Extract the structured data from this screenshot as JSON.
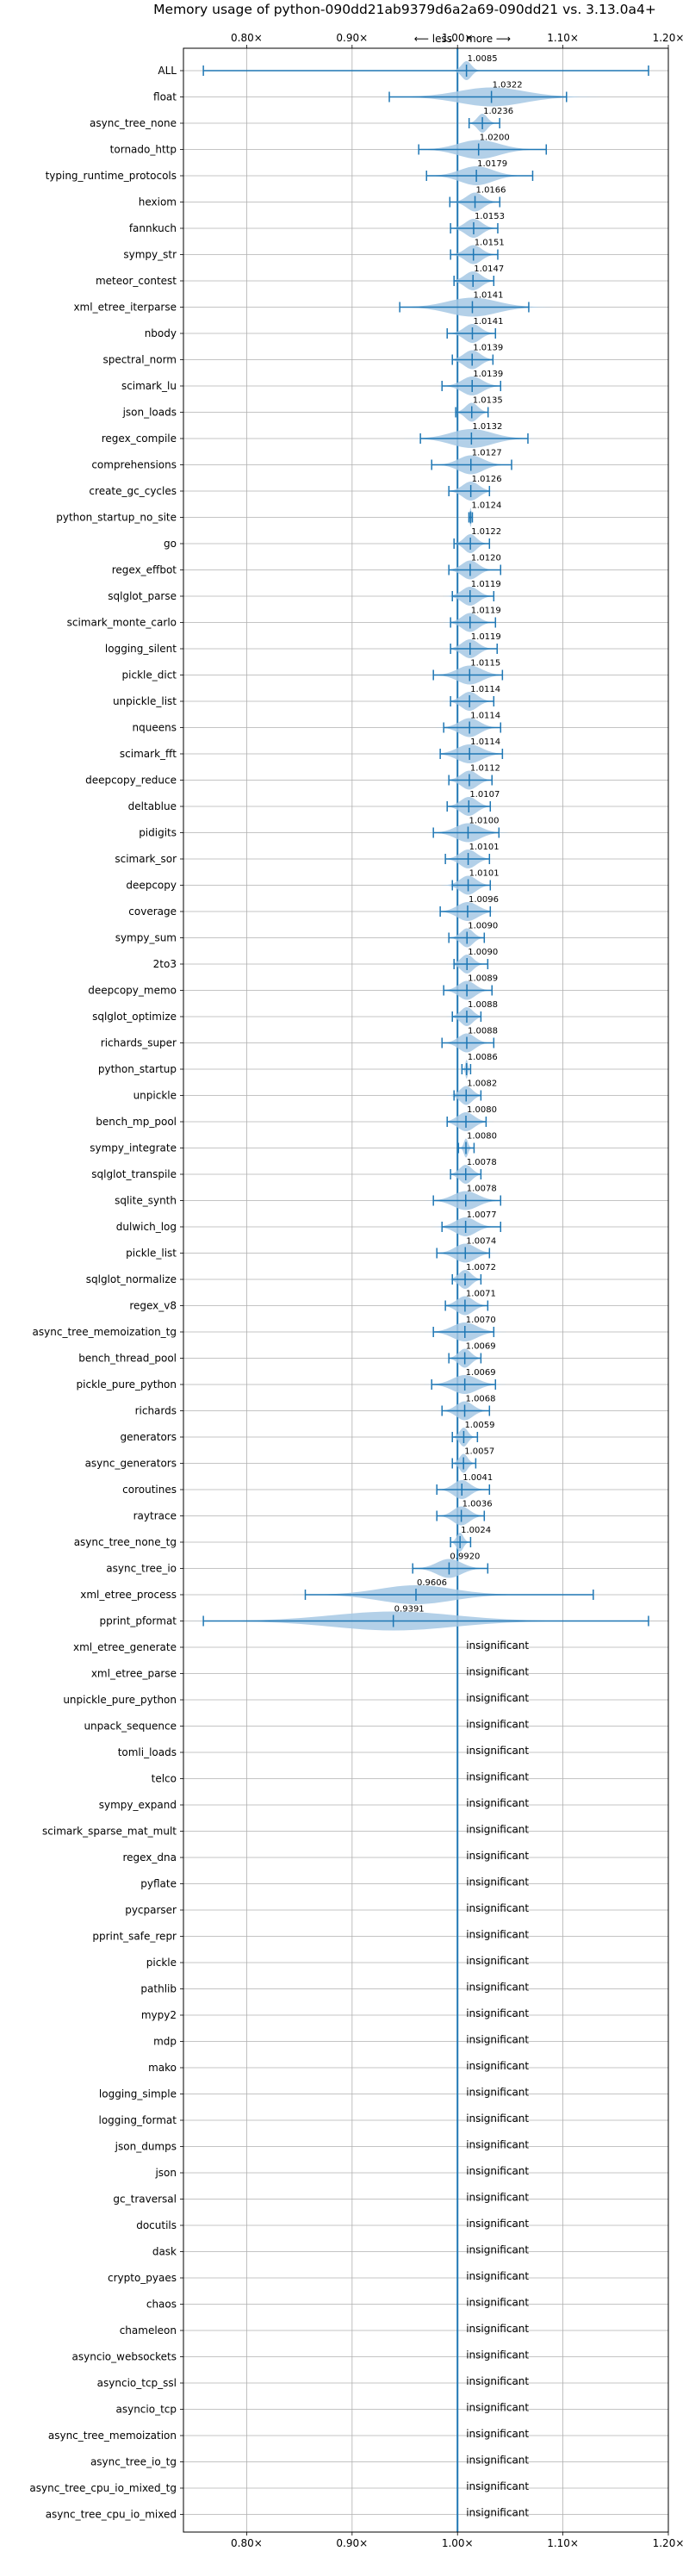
{
  "chart_data": {
    "type": "violin",
    "title": "Memory usage of python-090dd21ab9379d6a2a69-090dd21 vs. 3.13.0a4+",
    "direction_less": "⟵ less",
    "direction_more": "more ⟶",
    "xlim": [
      0.74,
      1.2
    ],
    "xticks": [
      0.8,
      0.9,
      1.0,
      1.1,
      1.2
    ],
    "xtick_labels": [
      "0.80×",
      "0.90×",
      "1.00×",
      "1.10×",
      "1.20×"
    ],
    "grid": true,
    "accent_color": "#1f77b4",
    "violin_fill_color": "#a6c8e4",
    "insignificant_label": "insignificant",
    "benchmarks": [
      {
        "name": "ALL",
        "value": 1.0085,
        "label": "1.0085",
        "lo": 0.7589,
        "hi": 1.1812,
        "spread": 0.012
      },
      {
        "name": "float",
        "value": 1.0322,
        "label": "1.0322",
        "lo": 0.9353,
        "hi": 1.1034,
        "spread": 0.08
      },
      {
        "name": "async_tree_none",
        "value": 1.0236,
        "label": "1.0236",
        "lo": 1.011,
        "hi": 1.04,
        "spread": 0.012
      },
      {
        "name": "tornado_http",
        "value": 1.02,
        "label": "1.0200",
        "lo": 0.9632,
        "hi": 1.0842,
        "spread": 0.05
      },
      {
        "name": "typing_runtime_protocols",
        "value": 1.0179,
        "label": "1.0179",
        "lo": 0.9706,
        "hi": 1.0713,
        "spread": 0.04
      },
      {
        "name": "hexiom",
        "value": 1.0166,
        "label": "1.0166",
        "lo": 0.9927,
        "hi": 1.0401,
        "spread": 0.02
      },
      {
        "name": "fannkuch",
        "value": 1.0153,
        "label": "1.0153",
        "lo": 0.9934,
        "hi": 1.0382,
        "spread": 0.02
      },
      {
        "name": "sympy_str",
        "value": 1.0151,
        "label": "1.0151",
        "lo": 0.9934,
        "hi": 1.0382,
        "spread": 0.02
      },
      {
        "name": "meteor_contest",
        "value": 1.0147,
        "label": "1.0147",
        "lo": 0.9967,
        "hi": 1.0344,
        "spread": 0.02
      },
      {
        "name": "xml_etree_iterparse",
        "value": 1.0141,
        "label": "1.0141",
        "lo": 0.9452,
        "hi": 1.0676,
        "spread": 0.06
      },
      {
        "name": "nbody",
        "value": 1.0141,
        "label": "1.0141",
        "lo": 0.9902,
        "hi": 1.036,
        "spread": 0.02
      },
      {
        "name": "spectral_norm",
        "value": 1.0139,
        "label": "1.0139",
        "lo": 0.9951,
        "hi": 1.0336,
        "spread": 0.02
      },
      {
        "name": "scimark_lu",
        "value": 1.0139,
        "label": "1.0139",
        "lo": 0.9853,
        "hi": 1.0409,
        "spread": 0.025
      },
      {
        "name": "json_loads",
        "value": 1.0135,
        "label": "1.0135",
        "lo": 0.9983,
        "hi": 1.029,
        "spread": 0.015
      },
      {
        "name": "regex_compile",
        "value": 1.0132,
        "label": "1.0132",
        "lo": 0.9648,
        "hi": 1.0668,
        "spread": 0.05
      },
      {
        "name": "comprehensions",
        "value": 1.0127,
        "label": "1.0127",
        "lo": 0.9755,
        "hi": 1.0513,
        "spread": 0.03
      },
      {
        "name": "create_gc_cycles",
        "value": 1.0126,
        "label": "1.0126",
        "lo": 0.9918,
        "hi": 1.0303,
        "spread": 0.02
      },
      {
        "name": "python_startup_no_site",
        "value": 1.0124,
        "label": "1.0124",
        "lo": 1.0108,
        "hi": 1.0141,
        "spread": 0.002
      },
      {
        "name": "go",
        "value": 1.0122,
        "label": "1.0122",
        "lo": 0.9967,
        "hi": 1.0303,
        "spread": 0.015
      },
      {
        "name": "regex_effbot",
        "value": 1.012,
        "label": "1.0120",
        "lo": 0.9918,
        "hi": 1.0409,
        "spread": 0.02
      },
      {
        "name": "sqlglot_parse",
        "value": 1.0119,
        "label": "1.0119",
        "lo": 0.9951,
        "hi": 1.0344,
        "spread": 0.02
      },
      {
        "name": "scimark_monte_carlo",
        "value": 1.0119,
        "label": "1.0119",
        "lo": 0.9934,
        "hi": 1.036,
        "spread": 0.02
      },
      {
        "name": "logging_silent",
        "value": 1.0119,
        "label": "1.0119",
        "lo": 0.9934,
        "hi": 1.0376,
        "spread": 0.02
      },
      {
        "name": "pickle_dict",
        "value": 1.0115,
        "label": "1.0115",
        "lo": 0.9771,
        "hi": 1.0426,
        "spread": 0.03
      },
      {
        "name": "unpickle_list",
        "value": 1.0114,
        "label": "1.0114",
        "lo": 0.9934,
        "hi": 1.0344,
        "spread": 0.02
      },
      {
        "name": "nqueens",
        "value": 1.0114,
        "label": "1.0114",
        "lo": 0.9869,
        "hi": 1.0409,
        "spread": 0.025
      },
      {
        "name": "scimark_fft",
        "value": 1.0114,
        "label": "1.0114",
        "lo": 0.9836,
        "hi": 1.0426,
        "spread": 0.03
      },
      {
        "name": "deepcopy_reduce",
        "value": 1.0112,
        "label": "1.0112",
        "lo": 0.9918,
        "hi": 1.0327,
        "spread": 0.02
      },
      {
        "name": "deltablue",
        "value": 1.0107,
        "label": "1.0107",
        "lo": 0.9902,
        "hi": 1.0311,
        "spread": 0.02
      },
      {
        "name": "pidigits",
        "value": 1.01,
        "label": "1.0100",
        "lo": 0.9771,
        "hi": 1.0393,
        "spread": 0.03
      },
      {
        "name": "scimark_sor",
        "value": 1.0101,
        "label": "1.0101",
        "lo": 0.9885,
        "hi": 1.0303,
        "spread": 0.02
      },
      {
        "name": "deepcopy",
        "value": 1.0101,
        "label": "1.0101",
        "lo": 0.9951,
        "hi": 1.0311,
        "spread": 0.02
      },
      {
        "name": "coverage",
        "value": 1.0096,
        "label": "1.0096",
        "lo": 0.9836,
        "hi": 1.0311,
        "spread": 0.025
      },
      {
        "name": "sympy_sum",
        "value": 1.009,
        "label": "1.0090",
        "lo": 0.9918,
        "hi": 1.0254,
        "spread": 0.015
      },
      {
        "name": "2to3",
        "value": 1.009,
        "label": "1.0090",
        "lo": 0.9967,
        "hi": 1.0287,
        "spread": 0.015
      },
      {
        "name": "deepcopy_memo",
        "value": 1.0089,
        "label": "1.0089",
        "lo": 0.9869,
        "hi": 1.0327,
        "spread": 0.02
      },
      {
        "name": "sqlglot_optimize",
        "value": 1.0088,
        "label": "1.0088",
        "lo": 0.9951,
        "hi": 1.0222,
        "spread": 0.015
      },
      {
        "name": "richards_super",
        "value": 1.0088,
        "label": "1.0088",
        "lo": 0.9853,
        "hi": 1.0344,
        "spread": 0.02
      },
      {
        "name": "python_startup",
        "value": 1.0086,
        "label": "1.0086",
        "lo": 1.0042,
        "hi": 1.0124,
        "spread": 0.003
      },
      {
        "name": "unpickle",
        "value": 1.0082,
        "label": "1.0082",
        "lo": 0.9967,
        "hi": 1.0222,
        "spread": 0.015
      },
      {
        "name": "bench_mp_pool",
        "value": 1.008,
        "label": "1.0080",
        "lo": 0.9902,
        "hi": 1.0271,
        "spread": 0.02
      },
      {
        "name": "sympy_integrate",
        "value": 1.008,
        "label": "1.0080",
        "lo": 1.0009,
        "hi": 1.0157,
        "spread": 0.005
      },
      {
        "name": "sqlglot_transpile",
        "value": 1.0078,
        "label": "1.0078",
        "lo": 0.9934,
        "hi": 1.0222,
        "spread": 0.015
      },
      {
        "name": "sqlite_synth",
        "value": 1.0078,
        "label": "1.0078",
        "lo": 0.9771,
        "hi": 1.0409,
        "spread": 0.03
      },
      {
        "name": "dulwich_log",
        "value": 1.0077,
        "label": "1.0077",
        "lo": 0.9853,
        "hi": 1.0409,
        "spread": 0.025
      },
      {
        "name": "pickle_list",
        "value": 1.0074,
        "label": "1.0074",
        "lo": 0.9804,
        "hi": 1.0303,
        "spread": 0.025
      },
      {
        "name": "sqlglot_normalize",
        "value": 1.0072,
        "label": "1.0072",
        "lo": 0.9951,
        "hi": 1.0222,
        "spread": 0.015
      },
      {
        "name": "regex_v8",
        "value": 1.0071,
        "label": "1.0071",
        "lo": 0.9885,
        "hi": 1.0287,
        "spread": 0.02
      },
      {
        "name": "async_tree_memoization_tg",
        "value": 1.007,
        "label": "1.0070",
        "lo": 0.9771,
        "hi": 1.0344,
        "spread": 0.03
      },
      {
        "name": "bench_thread_pool",
        "value": 1.0069,
        "label": "1.0069",
        "lo": 0.9918,
        "hi": 1.0222,
        "spread": 0.015
      },
      {
        "name": "pickle_pure_python",
        "value": 1.0069,
        "label": "1.0069",
        "lo": 0.9755,
        "hi": 1.036,
        "spread": 0.03
      },
      {
        "name": "richards",
        "value": 1.0068,
        "label": "1.0068",
        "lo": 0.9853,
        "hi": 1.0303,
        "spread": 0.02
      },
      {
        "name": "generators",
        "value": 1.0059,
        "label": "1.0059",
        "lo": 0.9951,
        "hi": 1.0189,
        "spread": 0.01
      },
      {
        "name": "async_generators",
        "value": 1.0057,
        "label": "1.0057",
        "lo": 0.9951,
        "hi": 1.0173,
        "spread": 0.01
      },
      {
        "name": "coroutines",
        "value": 1.0041,
        "label": "1.0041",
        "lo": 0.9804,
        "hi": 1.0303,
        "spread": 0.02
      },
      {
        "name": "raytrace",
        "value": 1.0036,
        "label": "1.0036",
        "lo": 0.9804,
        "hi": 1.0254,
        "spread": 0.02
      },
      {
        "name": "async_tree_none_tg",
        "value": 1.0024,
        "label": "1.0024",
        "lo": 0.9934,
        "hi": 1.0124,
        "spread": 0.008
      },
      {
        "name": "async_tree_io",
        "value": 0.992,
        "label": "0.9920",
        "lo": 0.9575,
        "hi": 1.0287,
        "spread": 0.03
      },
      {
        "name": "xml_etree_process",
        "value": 0.9606,
        "label": "0.9606",
        "lo": 0.8556,
        "hi": 1.1288,
        "spread": 0.09
      },
      {
        "name": "pprint_pformat",
        "value": 0.9391,
        "label": "0.9391",
        "lo": 0.7589,
        "hi": 1.1812,
        "spread": 0.15
      },
      {
        "name": "xml_etree_generate",
        "insignificant": true
      },
      {
        "name": "xml_etree_parse",
        "insignificant": true
      },
      {
        "name": "unpickle_pure_python",
        "insignificant": true
      },
      {
        "name": "unpack_sequence",
        "insignificant": true
      },
      {
        "name": "tomli_loads",
        "insignificant": true
      },
      {
        "name": "telco",
        "insignificant": true
      },
      {
        "name": "sympy_expand",
        "insignificant": true
      },
      {
        "name": "scimark_sparse_mat_mult",
        "insignificant": true
      },
      {
        "name": "regex_dna",
        "insignificant": true
      },
      {
        "name": "pyflate",
        "insignificant": true
      },
      {
        "name": "pycparser",
        "insignificant": true
      },
      {
        "name": "pprint_safe_repr",
        "insignificant": true
      },
      {
        "name": "pickle",
        "insignificant": true
      },
      {
        "name": "pathlib",
        "insignificant": true
      },
      {
        "name": "mypy2",
        "insignificant": true
      },
      {
        "name": "mdp",
        "insignificant": true
      },
      {
        "name": "mako",
        "insignificant": true
      },
      {
        "name": "logging_simple",
        "insignificant": true
      },
      {
        "name": "logging_format",
        "insignificant": true
      },
      {
        "name": "json_dumps",
        "insignificant": true
      },
      {
        "name": "json",
        "insignificant": true
      },
      {
        "name": "gc_traversal",
        "insignificant": true
      },
      {
        "name": "docutils",
        "insignificant": true
      },
      {
        "name": "dask",
        "insignificant": true
      },
      {
        "name": "crypto_pyaes",
        "insignificant": true
      },
      {
        "name": "chaos",
        "insignificant": true
      },
      {
        "name": "chameleon",
        "insignificant": true
      },
      {
        "name": "asyncio_websockets",
        "insignificant": true
      },
      {
        "name": "asyncio_tcp_ssl",
        "insignificant": true
      },
      {
        "name": "asyncio_tcp",
        "insignificant": true
      },
      {
        "name": "async_tree_memoization",
        "insignificant": true
      },
      {
        "name": "async_tree_io_tg",
        "insignificant": true
      },
      {
        "name": "async_tree_cpu_io_mixed_tg",
        "insignificant": true
      },
      {
        "name": "async_tree_cpu_io_mixed",
        "insignificant": true
      }
    ]
  }
}
